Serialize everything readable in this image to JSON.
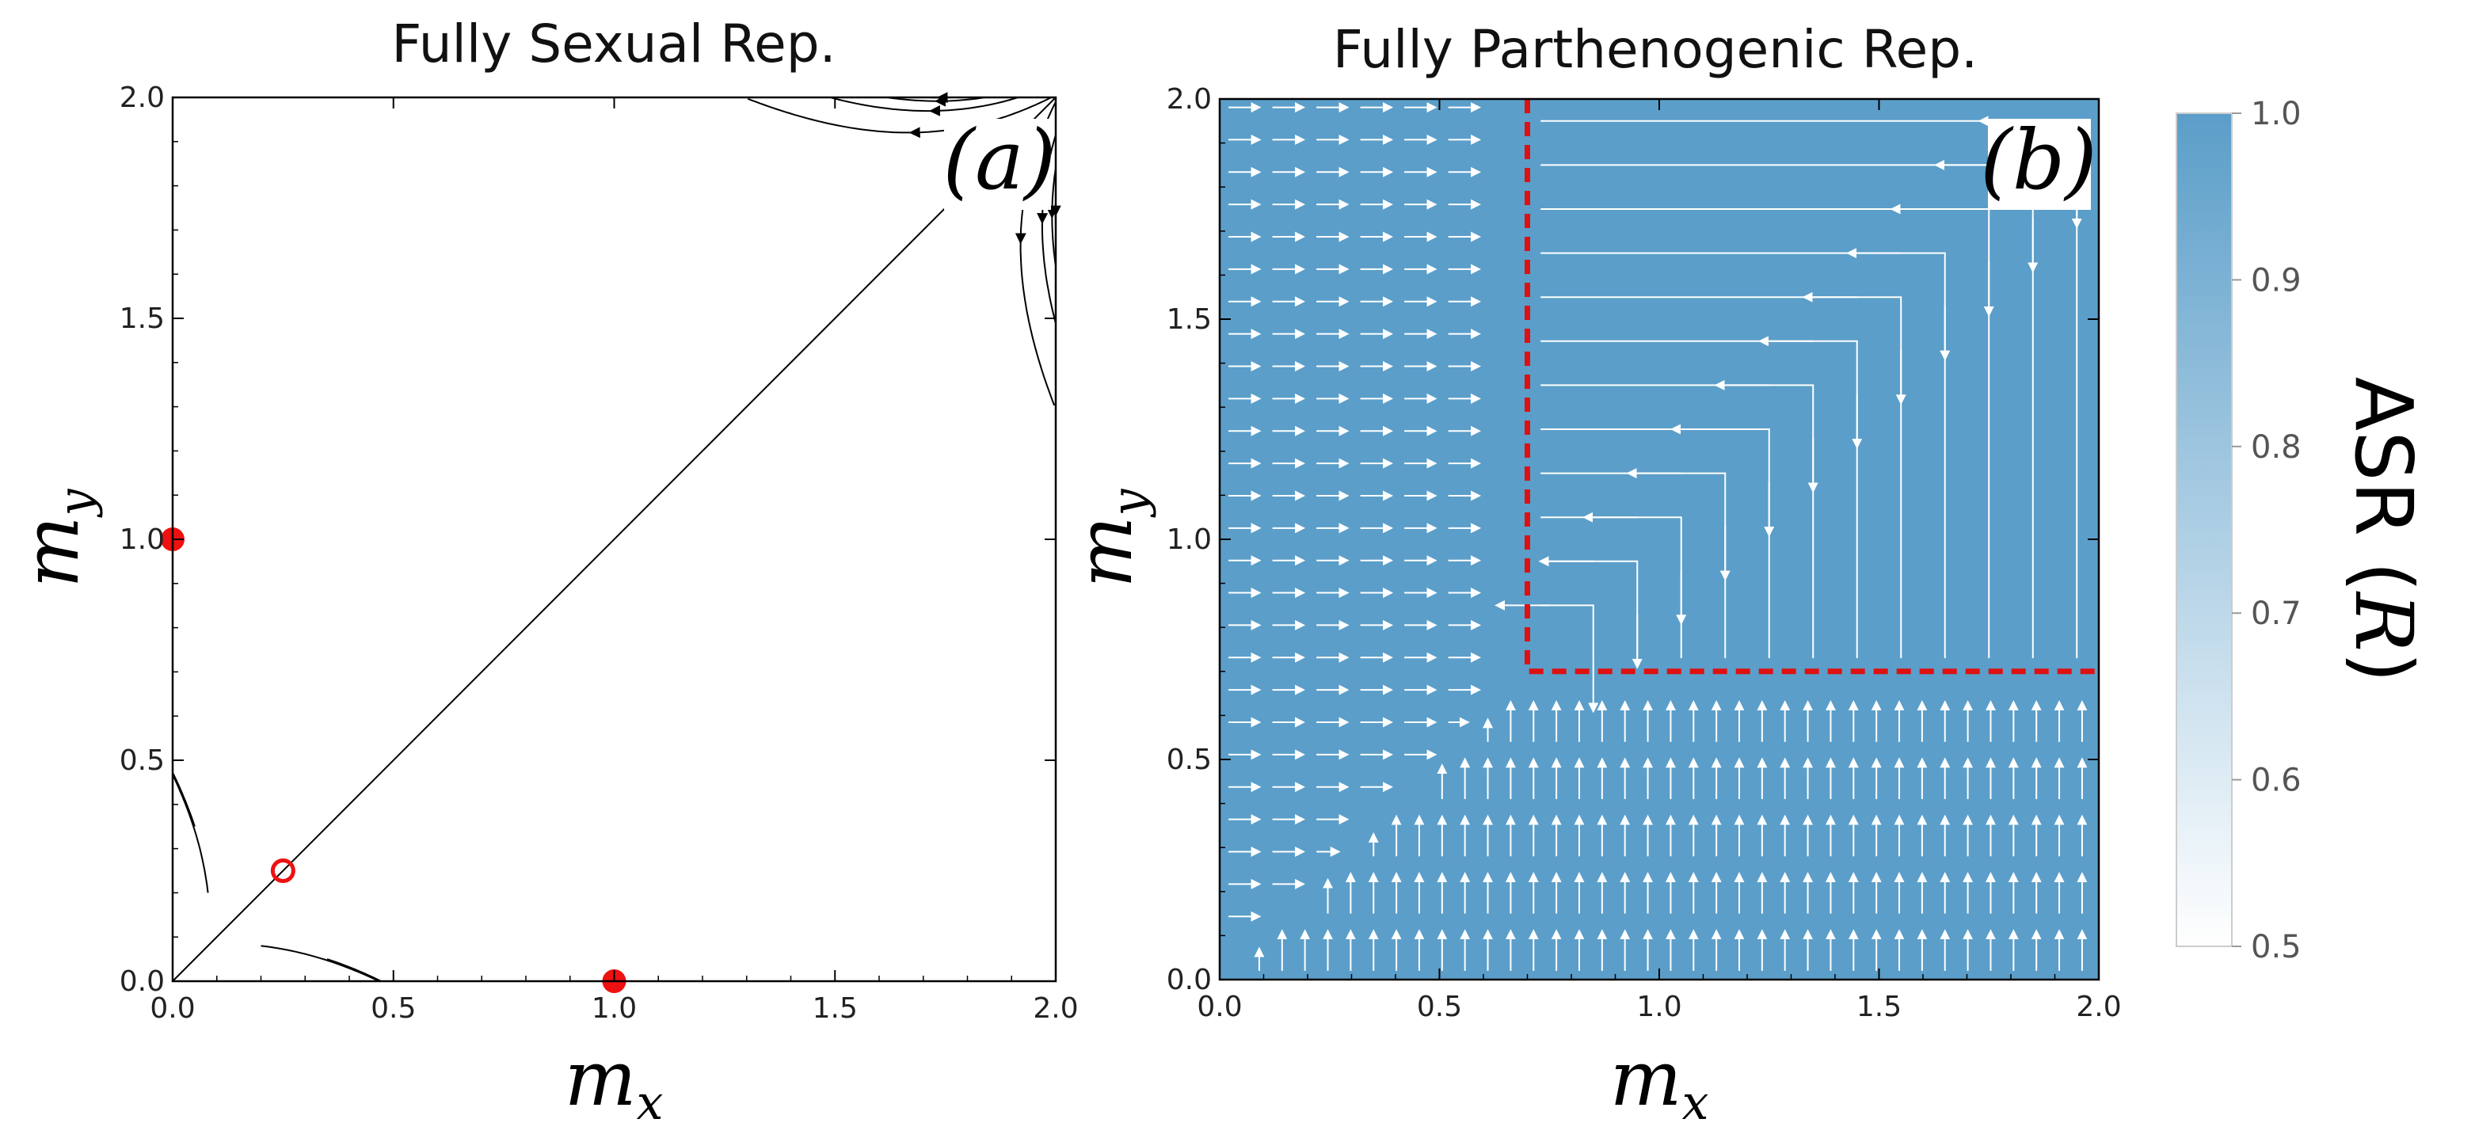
{
  "colors": {
    "panel_b_fill": "#5b9ec9",
    "fixed_point": "#ee1111",
    "boundary": "#dd1111",
    "streamline_a": "#000000",
    "streamline_b": "#ffffff",
    "colorbar_top": "#5b9ec9",
    "colorbar_bottom": "#ffffff"
  },
  "chart_data": [
    {
      "type": "streamplot",
      "title": "Fully Sexual Rep.",
      "panel_label": "(a)",
      "xlabel": "m_x",
      "xlabel_base": "m",
      "xlabel_sub": "x",
      "ylabel": "m_y",
      "ylabel_base": "m",
      "ylabel_sub": "y",
      "xlim": [
        0.0,
        2.0
      ],
      "ylim": [
        0.0,
        2.0
      ],
      "xticks": [
        "0.0",
        "0.5",
        "1.0",
        "1.5",
        "2.0"
      ],
      "yticks": [
        "0.0",
        "0.5",
        "1.0",
        "1.5",
        "2.0"
      ],
      "fixed_points": [
        {
          "name": "stable-point-y",
          "x": 0.0,
          "y": 1.0,
          "stable": true
        },
        {
          "name": "unstable-point",
          "x": 0.25,
          "y": 0.25,
          "stable": false
        },
        {
          "name": "stable-point-x",
          "x": 1.0,
          "y": 0.0,
          "stable": true
        }
      ],
      "separatrix": {
        "from": [
          0.0,
          0.0
        ],
        "to": [
          2.0,
          2.0
        ]
      }
    },
    {
      "type": "heatmap+streamplot",
      "title": "Fully Parthenogenic Rep.",
      "panel_label": "(b)",
      "xlabel": "m_x",
      "xlabel_base": "m",
      "xlabel_sub": "x",
      "ylabel": "m_y",
      "ylabel_base": "m",
      "ylabel_sub": "y",
      "xlim": [
        0.0,
        2.0
      ],
      "ylim": [
        0.0,
        2.0
      ],
      "xticks": [
        "0.0",
        "0.5",
        "1.0",
        "1.5",
        "2.0"
      ],
      "yticks": [
        "0.0",
        "0.5",
        "1.0",
        "1.5",
        "2.0"
      ],
      "heatmap_value": 1.0,
      "threshold": {
        "x": 0.7,
        "y": 0.7
      },
      "colorbar": {
        "label": "ASR (R)",
        "label_text": "ASR (",
        "label_symbol": "R",
        "label_close": ")",
        "range": [
          0.5,
          1.0
        ],
        "ticks": [
          "0.5",
          "0.6",
          "0.7",
          "0.8",
          "0.9",
          "1.0"
        ]
      }
    }
  ]
}
